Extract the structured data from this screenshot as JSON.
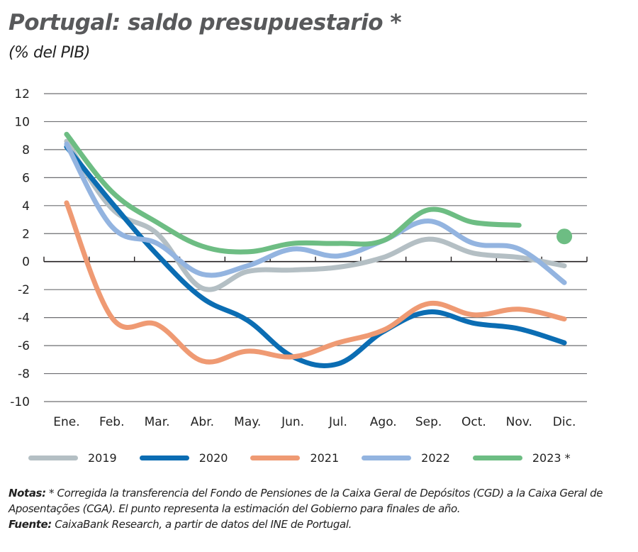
{
  "title": "Portugal: saldo presupuestario *",
  "subtitle": "(% del PIB)",
  "legend": [
    {
      "label": "2019",
      "color": "#b4bfc4"
    },
    {
      "label": "2020",
      "color": "#0b6db3"
    },
    {
      "label": "2021",
      "color": "#ef9a73"
    },
    {
      "label": "2022",
      "color": "#93b4e0"
    },
    {
      "label": "2023 *",
      "color": "#6dbd83"
    }
  ],
  "notes": {
    "notes_label": "Notas:",
    "notes_text": " * Corregida la transferencia del Fondo de Pensiones de la Caixa Geral de Depósitos (CGD) a la Caixa Geral de Aposentações (CGA). El punto representa la estimación del Gobierno para finales de año.",
    "source_label": "Fuente:",
    "source_text": " CaixaBank Research, a partir de datos del INE de Portugal."
  },
  "chart_data": {
    "type": "line",
    "title": "Portugal: saldo presupuestario *",
    "subtitle": "(% del PIB)",
    "xlabel": "",
    "ylabel": "",
    "categories": [
      "Ene.",
      "Feb.",
      "Mar.",
      "Abr.",
      "May.",
      "Jun.",
      "Jul.",
      "Ago.",
      "Sep.",
      "Oct.",
      "Nov.",
      "Dic."
    ],
    "ylim": [
      -10,
      12
    ],
    "yticks": [
      12,
      10,
      8,
      6,
      4,
      2,
      0,
      -2,
      -4,
      -6,
      -8,
      -10
    ],
    "grid": true,
    "legend_position": "bottom",
    "series": [
      {
        "name": "2019",
        "color": "#b4bfc4",
        "values": [
          8.6,
          3.8,
          2.0,
          -1.9,
          -0.7,
          -0.6,
          -0.4,
          0.3,
          1.6,
          0.6,
          0.3,
          -0.3
        ]
      },
      {
        "name": "2020",
        "color": "#0b6db3",
        "values": [
          8.2,
          4.2,
          0.5,
          -2.6,
          -4.2,
          -6.8,
          -7.3,
          -5.0,
          -3.6,
          -4.4,
          -4.8,
          -5.8
        ]
      },
      {
        "name": "2021",
        "color": "#ef9a73",
        "values": [
          4.2,
          -4.0,
          -4.5,
          -7.1,
          -6.4,
          -6.8,
          -5.8,
          -4.9,
          -3.0,
          -3.8,
          -3.4,
          -4.1
        ]
      },
      {
        "name": "2022",
        "color": "#93b4e0",
        "values": [
          8.4,
          2.5,
          1.3,
          -0.9,
          -0.3,
          0.9,
          0.4,
          1.5,
          2.9,
          1.3,
          0.9,
          -1.5
        ]
      },
      {
        "name": "2023 *",
        "color": "#6dbd83",
        "values": [
          9.1,
          5.0,
          2.8,
          1.1,
          0.7,
          1.3,
          1.3,
          1.5,
          3.7,
          2.8,
          2.6,
          null
        ]
      }
    ],
    "annotations": [
      {
        "type": "point",
        "series": "2023 *",
        "category": "Dic.",
        "value": 1.8,
        "label": "Government year-end estimate"
      }
    ]
  }
}
